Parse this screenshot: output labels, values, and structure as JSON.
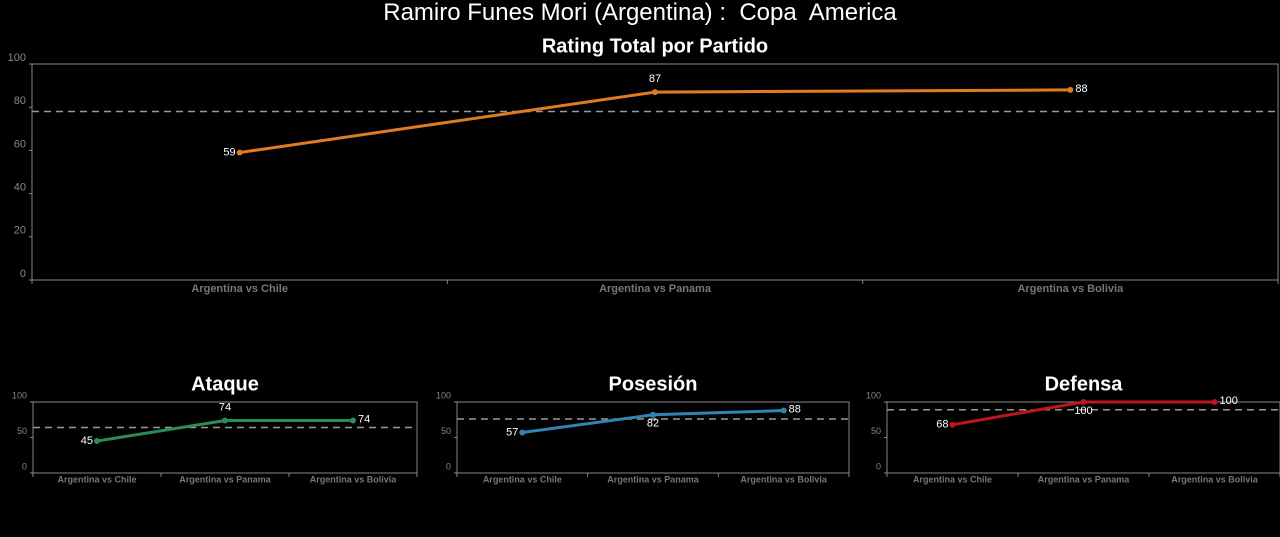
{
  "title": "Ramiro Funes Mori (Argentina) :  Copa  America",
  "chart_data": [
    {
      "type": "line",
      "title": "Rating Total por Partido",
      "categories": [
        "Argentina vs Chile",
        "Argentina vs Panama",
        "Argentina vs Bolivia"
      ],
      "values": [
        59,
        87,
        88
      ],
      "color": "#e07b20",
      "reference_line": 78,
      "ylim": [
        0,
        100
      ],
      "yticks": [
        0,
        20,
        40,
        60,
        80,
        100
      ]
    },
    {
      "type": "line",
      "title": "Ataque",
      "categories": [
        "Argentina vs Chile",
        "Argentina vs Panama",
        "Argentina vs Bolivia"
      ],
      "values": [
        45,
        74,
        74
      ],
      "color": "#2e8b57",
      "reference_line": 64,
      "ylim": [
        0,
        100
      ],
      "yticks": [
        0,
        50,
        100
      ]
    },
    {
      "type": "line",
      "title": "Posesión",
      "categories": [
        "Argentina vs Chile",
        "Argentina vs Panama",
        "Argentina vs Bolivia"
      ],
      "values": [
        57,
        82,
        88
      ],
      "color": "#2e86b0",
      "reference_line": 76,
      "ylim": [
        0,
        100
      ],
      "yticks": [
        0,
        50,
        100
      ]
    },
    {
      "type": "line",
      "title": "Defensa",
      "categories": [
        "Argentina vs Chile",
        "Argentina vs Panama",
        "Argentina vs Bolivia"
      ],
      "values": [
        68,
        100,
        100
      ],
      "color": "#c0141e",
      "reference_line": 89,
      "ylim": [
        0,
        100
      ],
      "yticks": [
        0,
        50,
        100
      ]
    }
  ]
}
